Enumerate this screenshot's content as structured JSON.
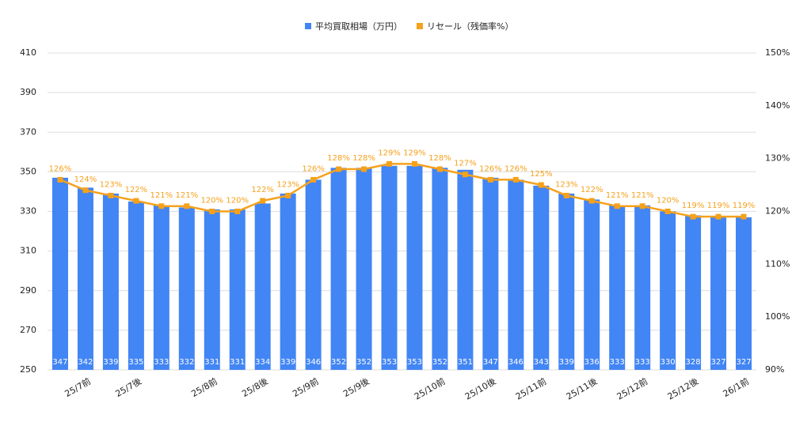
{
  "chart_data": {
    "type": "bar_line",
    "categories": [
      null,
      "25/7前",
      null,
      "25/7後",
      null,
      null,
      "25/8前",
      null,
      "25/8後",
      null,
      "25/9前",
      null,
      "25/9後",
      null,
      null,
      "25/10前",
      null,
      "25/10後",
      null,
      "25/11前",
      null,
      "25/11後",
      null,
      "25/12前",
      null,
      "25/12後",
      null,
      "26/1前"
    ],
    "series": [
      {
        "name": "平均買取相場（万円）",
        "color": "#4285f4",
        "type": "bar",
        "values": [
          347,
          342,
          339,
          335,
          333,
          332,
          331,
          331,
          334,
          339,
          346,
          352,
          352,
          353,
          353,
          352,
          351,
          347,
          346,
          343,
          339,
          336,
          333,
          333,
          330,
          328,
          327,
          327
        ]
      },
      {
        "name": "リセール（残価率%）",
        "color": "#f5a11c",
        "type": "line",
        "axis": "y2",
        "values": [
          126,
          124,
          123,
          122,
          121,
          121,
          120,
          120,
          122,
          123,
          126,
          128,
          128,
          129,
          129,
          128,
          127,
          126,
          126,
          125,
          123,
          122,
          121,
          121,
          120,
          119,
          119,
          119
        ],
        "value_labels": [
          "126%",
          "124%",
          "123%",
          "122%",
          "121%",
          "121%",
          "120%",
          "120%",
          "122%",
          "123%",
          "126%",
          "128%",
          "128%",
          "129%",
          "129%",
          "128%",
          "127%",
          "126%",
          "126%",
          "125%",
          "123%",
          "122%",
          "121%",
          "121%",
          "120%",
          "119%",
          "119%",
          "119%"
        ]
      }
    ],
    "ylim": [
      250,
      410
    ],
    "yticks": [
      250,
      270,
      290,
      310,
      330,
      350,
      370,
      390,
      410
    ],
    "y2lim": [
      90,
      150
    ],
    "y2ticks": [
      {
        "value": 90,
        "label": "90%"
      },
      {
        "value": 100,
        "label": "100%"
      },
      {
        "value": 110,
        "label": "110%"
      },
      {
        "value": 120,
        "label": "120%"
      },
      {
        "value": 130,
        "label": "130%"
      },
      {
        "value": 140,
        "label": "140%"
      },
      {
        "value": 150,
        "label": "150%"
      }
    ],
    "grid": true,
    "legend": "top"
  }
}
